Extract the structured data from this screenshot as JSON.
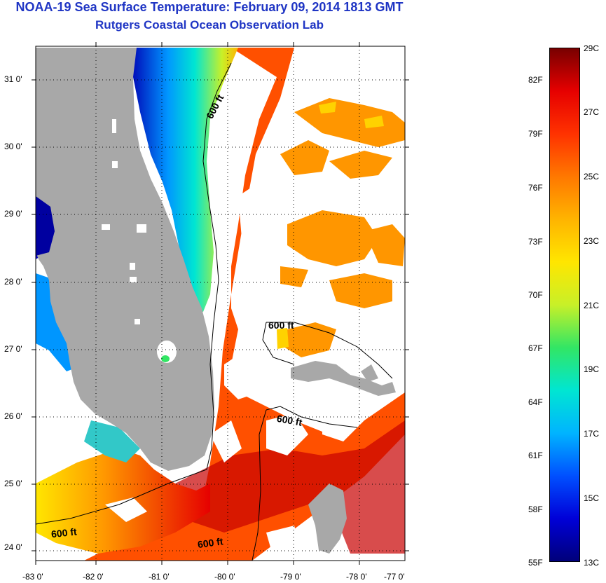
{
  "header": {
    "title": "NOAA-19 Sea Surface Temperature:  February 09, 2014 1813 GMT",
    "subtitle": "Rutgers Coastal Ocean Observation Lab"
  },
  "map": {
    "lat_labels": [
      "31 0'",
      "30 0'",
      "29 0'",
      "28 0'",
      "27 0'",
      "26 0'",
      "25 0'",
      "24 0'"
    ],
    "lon_labels": [
      "-83 0'",
      "-82 0'",
      "-81 0'",
      "-80 0'",
      "-79 0'",
      "-78 0'",
      "-77 0'"
    ],
    "contour_labels": [
      "600 ft",
      "600 ft",
      "600 ft",
      "600 ft",
      "600 ft"
    ],
    "colors": {
      "land": "#a8a8a8",
      "cloud": "#ffffff",
      "grid": "#000000"
    }
  },
  "colorbar": {
    "fahrenheit_labels": [
      "82F",
      "79F",
      "76F",
      "73F",
      "70F",
      "67F",
      "64F",
      "61F",
      "58F",
      "55F"
    ],
    "celsius_labels": [
      "29C",
      "27C",
      "25C",
      "23C",
      "21C",
      "19C",
      "17C",
      "15C",
      "13C"
    ],
    "gradient_stops": [
      "#00007a",
      "#0000d8",
      "#0050ff",
      "#00b4ff",
      "#00e6d2",
      "#32e664",
      "#c8f028",
      "#ffe600",
      "#ffb400",
      "#ff7800",
      "#ff3200",
      "#e60000",
      "#780000"
    ]
  }
}
